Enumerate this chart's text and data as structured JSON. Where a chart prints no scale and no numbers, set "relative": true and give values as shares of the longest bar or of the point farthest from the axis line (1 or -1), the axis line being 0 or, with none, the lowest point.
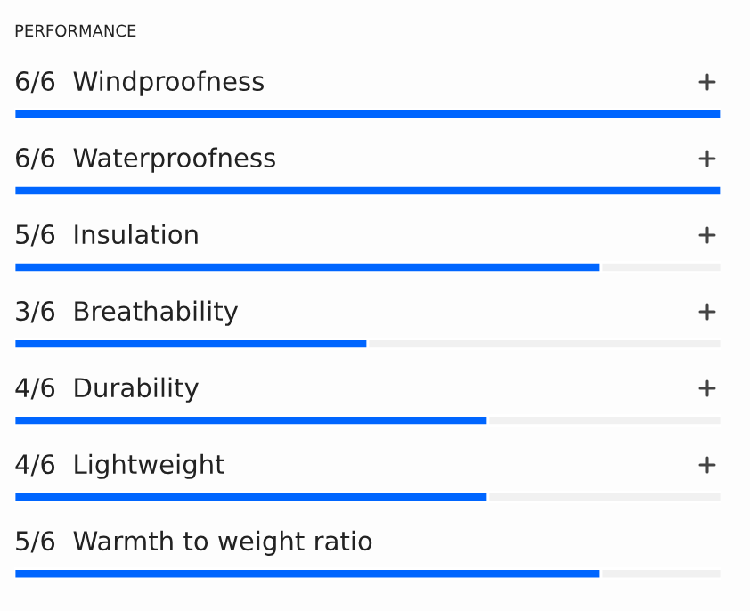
{
  "chart_data": {
    "type": "bar",
    "orientation": "horizontal",
    "stacked": true,
    "relative": true,
    "title": "PERFORMANCE",
    "categories": [
      "6/6  Windproofness",
      "6/6  Waterproofness",
      "5/6  Insulation",
      "3/6  Breathability",
      "4/6  Durability",
      "4/6  Lightweight",
      "5/6  Warmth to weight ratio"
    ],
    "series": [
      {
        "color": "#0066ff",
        "values": [
          1,
          1,
          0.83,
          0.5,
          0.67,
          0.67,
          0.83
        ]
      },
      {
        "color": "#f1f1f1",
        "values": [
          0,
          0,
          0.17,
          0.5,
          0.33,
          0.33,
          0.17
        ]
      }
    ],
    "legend": false
  }
}
